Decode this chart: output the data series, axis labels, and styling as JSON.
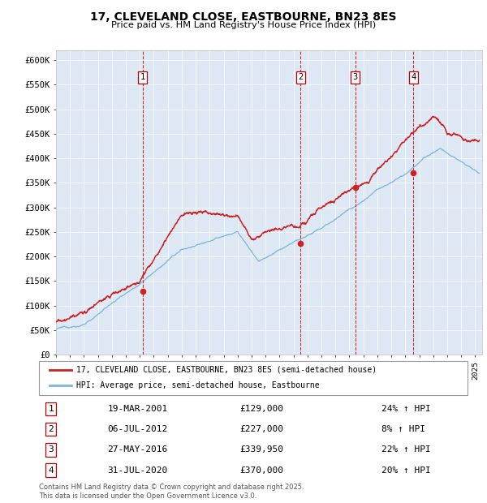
{
  "title": "17, CLEVELAND CLOSE, EASTBOURNE, BN23 8ES",
  "subtitle": "Price paid vs. HM Land Registry's House Price Index (HPI)",
  "ylabel_ticks": [
    "£0",
    "£50K",
    "£100K",
    "£150K",
    "£200K",
    "£250K",
    "£300K",
    "£350K",
    "£400K",
    "£450K",
    "£500K",
    "£550K",
    "£600K"
  ],
  "ytick_values": [
    0,
    50000,
    100000,
    150000,
    200000,
    250000,
    300000,
    350000,
    400000,
    450000,
    500000,
    550000,
    600000
  ],
  "ylim": [
    0,
    620000
  ],
  "xlim_start": 1995.0,
  "xlim_end": 2025.5,
  "hpi_color": "#7ab8d9",
  "price_color": "#cc2222",
  "vline_color": "#cc2222",
  "plot_bg_color": "#dde8f4",
  "grid_color": "#ffffff",
  "sale_events": [
    {
      "num": 1,
      "year": 2001.21,
      "price": 129000
    },
    {
      "num": 2,
      "year": 2012.51,
      "price": 227000
    },
    {
      "num": 3,
      "year": 2016.41,
      "price": 339950
    },
    {
      "num": 4,
      "year": 2020.58,
      "price": 370000
    }
  ],
  "legend_label_price": "17, CLEVELAND CLOSE, EASTBOURNE, BN23 8ES (semi-detached house)",
  "legend_label_hpi": "HPI: Average price, semi-detached house, Eastbourne",
  "footnote": "Contains HM Land Registry data © Crown copyright and database right 2025.\nThis data is licensed under the Open Government Licence v3.0.",
  "table_rows": [
    {
      "num": 1,
      "date": "19-MAR-2001",
      "price": "£129,000",
      "pct": "24% ↑ HPI"
    },
    {
      "num": 2,
      "date": "06-JUL-2012",
      "price": "£227,000",
      "pct": "8% ↑ HPI"
    },
    {
      "num": 3,
      "date": "27-MAY-2016",
      "price": "£339,950",
      "pct": "22% ↑ HPI"
    },
    {
      "num": 4,
      "date": "31-JUL-2020",
      "price": "£370,000",
      "pct": "20% ↑ HPI"
    }
  ]
}
